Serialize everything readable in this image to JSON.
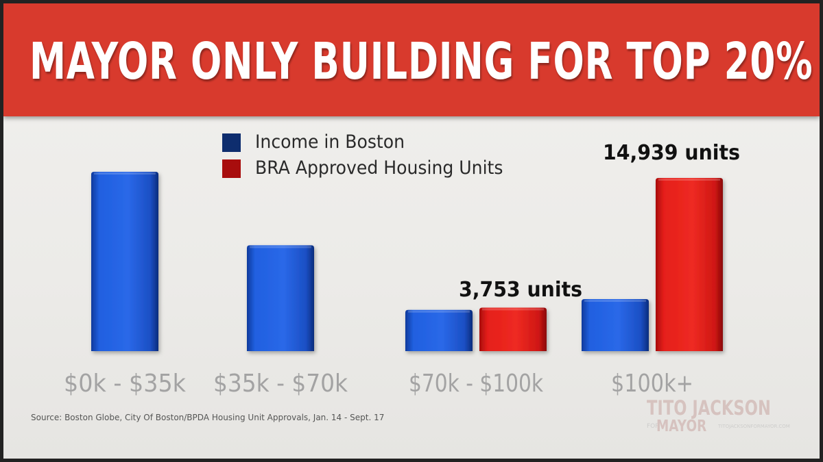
{
  "title": "MAYOR ONLY BUILDING FOR TOP 20%",
  "chart_data": {
    "type": "bar",
    "title": "MAYOR ONLY BUILDING FOR TOP 20%",
    "categories": [
      "$0k - $35k",
      "$35k - $70k",
      "$70k - $100k",
      "$100k+"
    ],
    "series": [
      {
        "name": "Income in Boston",
        "color": "#1f57d6",
        "values": [
          100,
          59,
          23,
          29
        ]
      },
      {
        "name": "BRA Approved Housing Units",
        "color": "#e3201b",
        "values": [
          0,
          0,
          3753,
          14939
        ]
      }
    ],
    "data_labels": {
      "2": "3,753 units",
      "3": "14,939 units"
    },
    "legend_position": "top",
    "grid": false,
    "axes_visible": false
  },
  "source": "Source: Boston Globe, City Of Boston/BPDA Housing Unit Approvals,  Jan. 14 - Sept. 17",
  "logo": {
    "name": "TITO JACKSON",
    "for": "FOR",
    "office": "MAYOR",
    "url": "TITOJACKSONFORMAYOR.COM"
  },
  "colors": {
    "banner": "#d83a2d",
    "legend_income": "#0e2d6e",
    "legend_housing": "#a80d0d"
  }
}
